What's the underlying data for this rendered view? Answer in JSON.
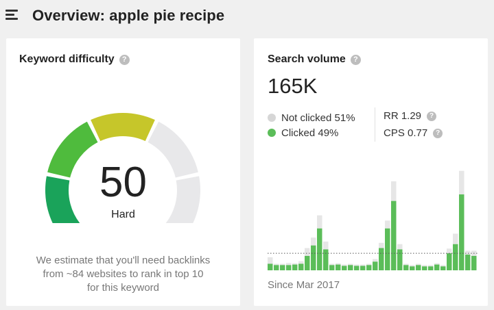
{
  "header": {
    "title": "Overview: apple pie recipe",
    "menu_icon": "hamburger-menu-icon"
  },
  "keyword_difficulty": {
    "title": "Keyword difficulty",
    "help_icon": "?",
    "value": "50",
    "level": "Hard",
    "score": 50,
    "description_lines": [
      "We estimate that you'll need backlinks",
      "from ~84 websites to rank in top 10",
      "for this keyword"
    ],
    "colors": {
      "segments": [
        "#1aa35a",
        "#4fbb3d",
        "#c6c62a"
      ],
      "inactive": "#e8e8ea"
    }
  },
  "search_volume": {
    "title": "Search volume",
    "help_icon": "?",
    "value": "165K",
    "legend": [
      {
        "label": "Not clicked 51%",
        "color": "#d6d6d6"
      },
      {
        "label": "Clicked 49%",
        "color": "#5bbd59"
      }
    ],
    "metrics": [
      {
        "label": "RR 1.29"
      },
      {
        "label": "CPS 0.77"
      }
    ],
    "since": "Since Mar 2017",
    "colors": {
      "clicked": "#5bbd59",
      "not_clicked": "#e6e6e6"
    }
  },
  "chart_data": {
    "type": "bar",
    "stacked": true,
    "series": [
      {
        "values": [
          2.5,
          2,
          2,
          2,
          2.2,
          2.5,
          5.5,
          9.5,
          16,
          8,
          2,
          2.2,
          1.7,
          2,
          1.7,
          1.7,
          2,
          3.3,
          8.5,
          16,
          26.5,
          8,
          2,
          1.5,
          2,
          1.5,
          1.5,
          2.2,
          1.5,
          6.5,
          10,
          29,
          6,
          5.5
        ]
      },
      {
        "values": [
          2.5,
          0.5,
          0.5,
          0.8,
          0.5,
          1,
          3,
          3,
          5,
          3,
          0.5,
          0.5,
          0.5,
          0.5,
          0.5,
          0.5,
          0.5,
          1,
          2,
          3,
          7.5,
          2,
          0.5,
          0.5,
          0.5,
          0.5,
          0.5,
          0.5,
          0.5,
          1.8,
          4,
          9,
          1.5,
          2
        ]
      }
    ],
    "threshold": 6.5,
    "ylim": [
      0,
      40
    ]
  }
}
